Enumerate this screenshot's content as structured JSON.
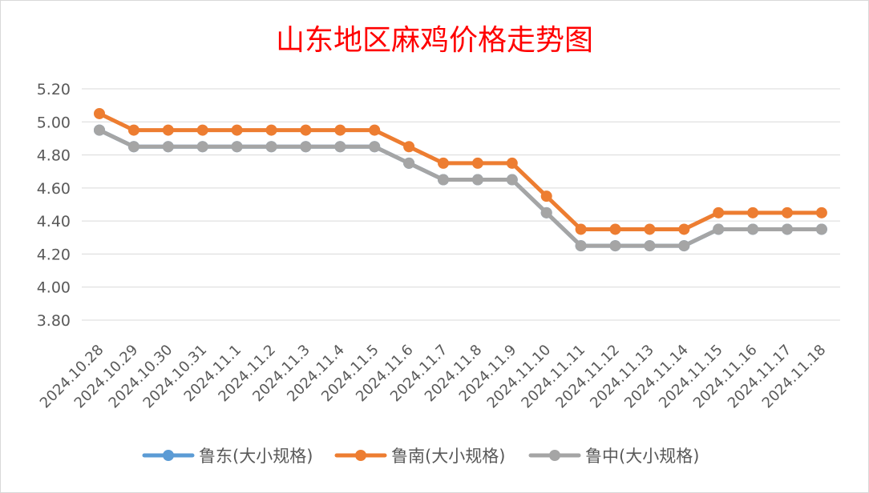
{
  "chart_data": {
    "type": "line",
    "title": "山东地区麻鸡价格走势图",
    "xlabel": "",
    "ylabel": "",
    "categories": [
      "2024.10.28",
      "2024.10.29",
      "2024.10.30",
      "2024.10.31",
      "2024.11.1",
      "2024.11.2",
      "2024.11.3",
      "2024.11.4",
      "2024.11.5",
      "2024.11.6",
      "2024.11.7",
      "2024.11.8",
      "2024.11.9",
      "2024.11.10",
      "2024.11.11",
      "2024.11.12",
      "2024.11.13",
      "2024.11.14",
      "2024.11.15",
      "2024.11.16",
      "2024.11.17",
      "2024.11.18"
    ],
    "ylim": [
      3.8,
      5.2
    ],
    "yticks": [
      "3.80",
      "4.00",
      "4.20",
      "4.40",
      "4.60",
      "4.80",
      "5.00",
      "5.20"
    ],
    "grid": true,
    "legend_position": "bottom",
    "series": [
      {
        "name": "鲁东(大小规格)",
        "color": "#5b9bd5",
        "values": [
          4.95,
          4.85,
          4.85,
          4.85,
          4.85,
          4.85,
          4.85,
          4.85,
          4.85,
          4.75,
          4.65,
          4.65,
          4.65,
          4.45,
          4.25,
          4.25,
          4.25,
          4.25,
          4.35,
          4.35,
          4.35,
          4.35
        ]
      },
      {
        "name": "鲁南(大小规格)",
        "color": "#ed7d31",
        "values": [
          5.05,
          4.95,
          4.95,
          4.95,
          4.95,
          4.95,
          4.95,
          4.95,
          4.95,
          4.85,
          4.75,
          4.75,
          4.75,
          4.55,
          4.35,
          4.35,
          4.35,
          4.35,
          4.45,
          4.45,
          4.45,
          4.45
        ]
      },
      {
        "name": "鲁中(大小规格)",
        "color": "#a5a5a5",
        "values": [
          4.95,
          4.85,
          4.85,
          4.85,
          4.85,
          4.85,
          4.85,
          4.85,
          4.85,
          4.75,
          4.65,
          4.65,
          4.65,
          4.45,
          4.25,
          4.25,
          4.25,
          4.25,
          4.35,
          4.35,
          4.35,
          4.35
        ]
      }
    ]
  }
}
